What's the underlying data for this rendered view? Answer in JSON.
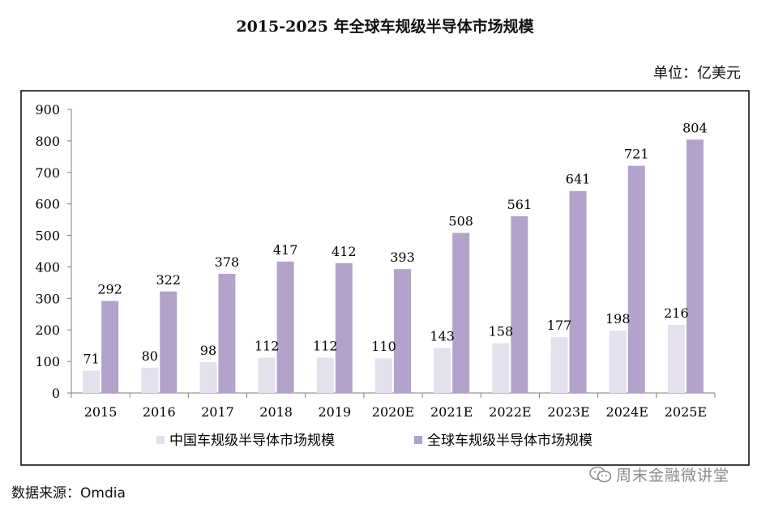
{
  "title": "2015-2025 年全球车规级半导体市场规模",
  "unit": "单位：亿美元",
  "source": "数据来源：Omdia",
  "watermark": "周末金融微讲堂",
  "colors": {
    "china": "#e5e0ee",
    "global": "#b3a2cc",
    "frame": "#000000",
    "axis": "#7f7f7f"
  },
  "chart_data": {
    "type": "bar",
    "title": "2015-2025 年全球车规级半导体市场规模",
    "ylabel": "",
    "xlabel": "",
    "ylim": [
      0,
      900
    ],
    "yticks": [
      0,
      100,
      200,
      300,
      400,
      500,
      600,
      700,
      800,
      900
    ],
    "categories": [
      "2015",
      "2016",
      "2017",
      "2018",
      "2019",
      "2020E",
      "2021E",
      "2022E",
      "2023E",
      "2024E",
      "2025E"
    ],
    "series": [
      {
        "name": "中国车规级半导体市场规模",
        "values": [
          71,
          80,
          98,
          112,
          112,
          110,
          143,
          158,
          177,
          198,
          216
        ]
      },
      {
        "name": "全球车规级半导体市场规模",
        "values": [
          292,
          322,
          378,
          417,
          412,
          393,
          508,
          561,
          641,
          721,
          804
        ]
      }
    ],
    "legend_position": "bottom",
    "grid": false
  }
}
